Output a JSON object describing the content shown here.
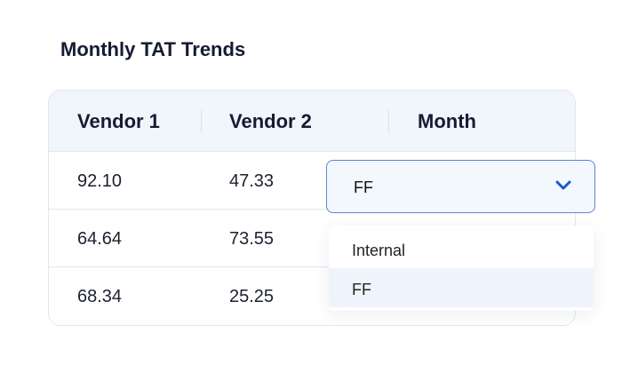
{
  "title": "Monthly TAT Trends",
  "table": {
    "headers": [
      "Vendor 1",
      "Vendor 2",
      "Month"
    ],
    "rows": [
      [
        "92.10",
        "47.33"
      ],
      [
        "64.64",
        "73.55"
      ],
      [
        "68.34",
        "25.25"
      ]
    ]
  },
  "month_select": {
    "value": "FF",
    "icon": "chevron-down-icon",
    "accent": "#1a56d6",
    "options": [
      "Internal",
      "FF"
    ],
    "selected_option": "FF"
  }
}
